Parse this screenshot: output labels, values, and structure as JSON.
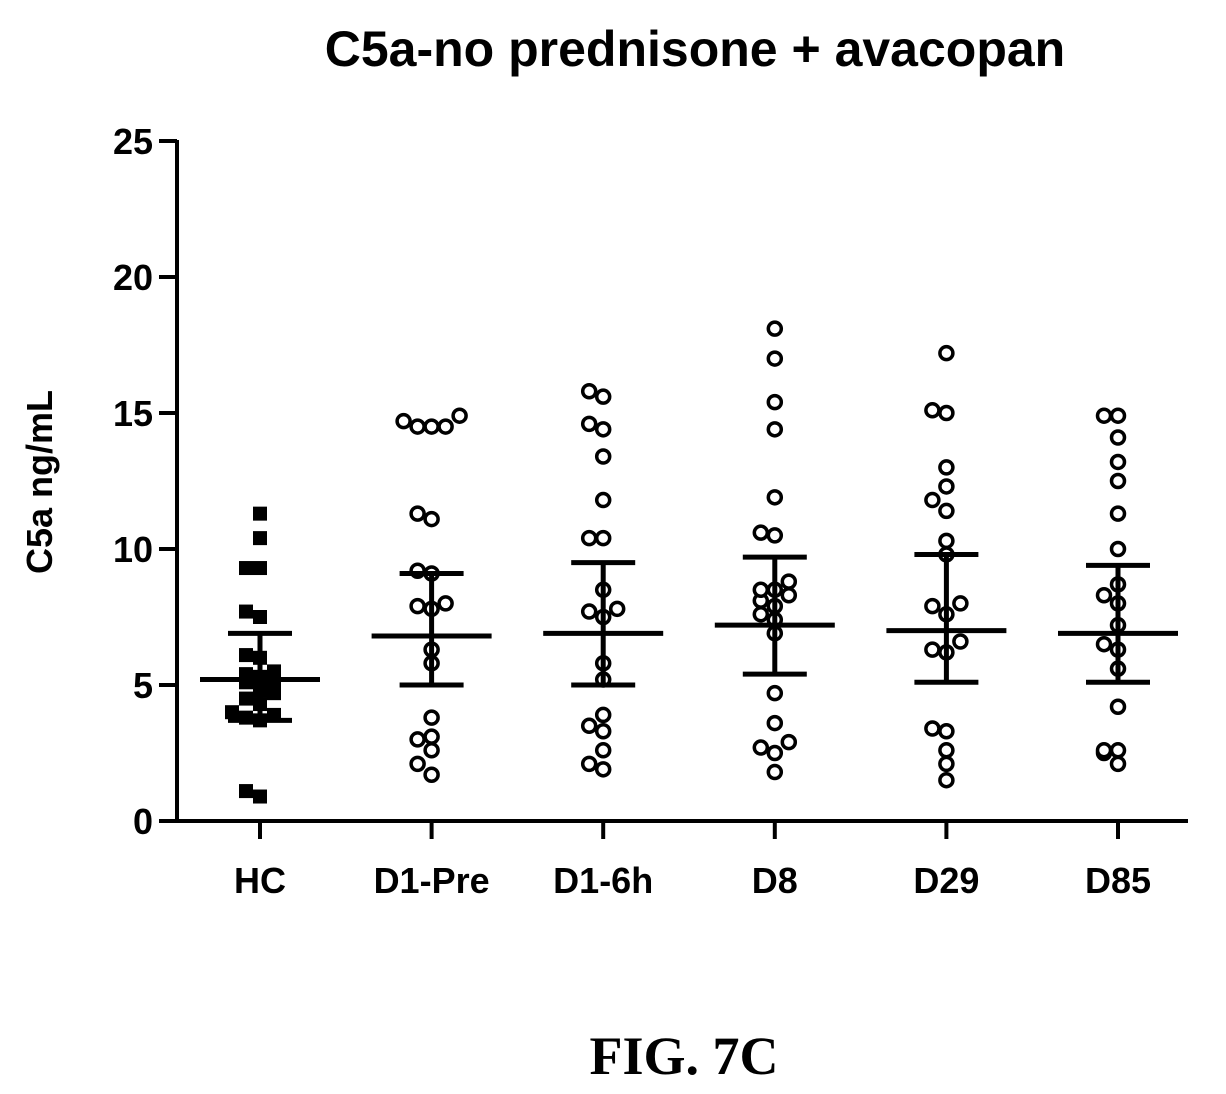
{
  "chart_data": {
    "type": "scatter",
    "title": "C5a-no prednisone + avacopan",
    "xlabel": "",
    "ylabel": "C5a ng/mL",
    "ylim": [
      0,
      25
    ],
    "yticks": [
      0,
      5,
      10,
      15,
      20,
      25
    ],
    "categories": [
      "HC",
      "D1-Pre",
      "D1-6h",
      "D8",
      "D29",
      "D85"
    ],
    "series": [
      {
        "category": "HC",
        "marker": "filled-square",
        "values": [
          11.3,
          10.4,
          9.3,
          9.3,
          7.7,
          7.5,
          6.1,
          6.0,
          5.5,
          5.4,
          5.3,
          5.2,
          5.1,
          4.8,
          4.7,
          4.5,
          4.3,
          4.0,
          3.9,
          3.8,
          3.7,
          1.1,
          0.9
        ],
        "mean": 5.2,
        "sd": [
          3.7,
          6.9
        ]
      },
      {
        "category": "D1-Pre",
        "marker": "open-circle",
        "values": [
          14.9,
          14.7,
          14.5,
          14.5,
          14.5,
          11.3,
          11.1,
          9.2,
          9.1,
          8.0,
          7.9,
          7.8,
          6.3,
          5.8,
          3.8,
          3.1,
          3.0,
          2.6,
          2.1,
          1.7
        ],
        "mean": 6.8,
        "sd": [
          5.0,
          9.1
        ]
      },
      {
        "category": "D1-6h",
        "marker": "open-circle",
        "values": [
          15.8,
          15.6,
          14.6,
          14.4,
          13.4,
          11.8,
          10.4,
          10.4,
          8.5,
          7.8,
          7.7,
          7.5,
          5.8,
          5.2,
          3.9,
          3.5,
          3.3,
          2.6,
          2.1,
          1.9
        ],
        "mean": 6.9,
        "sd": [
          5.0,
          9.5
        ]
      },
      {
        "category": "D8",
        "marker": "open-circle",
        "values": [
          18.1,
          17.0,
          15.4,
          14.4,
          11.9,
          10.6,
          10.5,
          8.8,
          8.5,
          8.5,
          8.3,
          8.1,
          7.9,
          7.6,
          7.4,
          6.9,
          4.7,
          3.6,
          2.9,
          2.7,
          2.5,
          1.8
        ],
        "mean": 7.2,
        "sd": [
          5.4,
          9.7
        ]
      },
      {
        "category": "D29",
        "marker": "open-circle",
        "values": [
          17.2,
          15.1,
          15.0,
          13.0,
          12.3,
          11.8,
          11.4,
          10.3,
          9.8,
          8.0,
          7.9,
          7.6,
          6.6,
          6.3,
          6.2,
          3.4,
          3.3,
          2.6,
          2.1,
          1.5
        ],
        "mean": 7.0,
        "sd": [
          5.1,
          9.8
        ]
      },
      {
        "category": "D85",
        "marker": "open-circle",
        "values": [
          14.9,
          14.9,
          14.1,
          13.2,
          12.5,
          11.3,
          10.0,
          8.7,
          8.3,
          8.0,
          7.2,
          6.5,
          6.3,
          5.6,
          4.2,
          2.6,
          2.6,
          2.5,
          2.1
        ],
        "mean": 6.9,
        "sd": [
          5.1,
          9.4
        ]
      }
    ],
    "grid": false,
    "legend": "none"
  },
  "caption": "FIG. 7C"
}
